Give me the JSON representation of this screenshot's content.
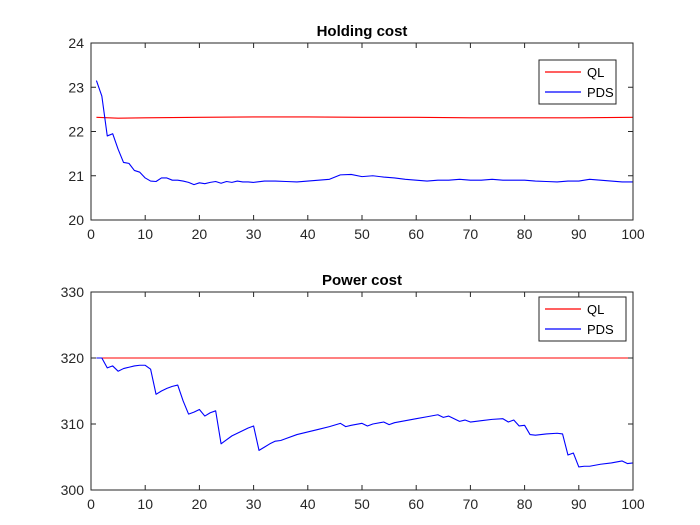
{
  "chart_data": [
    {
      "type": "line",
      "title": "Holding cost",
      "xlabel": "",
      "ylabel": "",
      "xlim": [
        0,
        100
      ],
      "ylim": [
        20,
        24
      ],
      "xticks": [
        0,
        10,
        20,
        30,
        40,
        50,
        60,
        70,
        80,
        90,
        100
      ],
      "yticks": [
        20,
        21,
        22,
        23,
        24
      ],
      "grid": false,
      "legend": "top-right",
      "series": [
        {
          "name": "QL",
          "color": "#ff0000",
          "x": [
            1,
            5,
            10,
            20,
            30,
            40,
            50,
            60,
            70,
            80,
            90,
            100
          ],
          "y": [
            22.32,
            22.3,
            22.31,
            22.32,
            22.33,
            22.33,
            22.32,
            22.32,
            22.31,
            22.31,
            22.31,
            22.32
          ]
        },
        {
          "name": "PDS",
          "color": "#0000ff",
          "x": [
            1,
            2,
            3,
            4,
            5,
            6,
            7,
            8,
            9,
            10,
            11,
            12,
            13,
            14,
            15,
            16,
            17,
            18,
            19,
            20,
            21,
            22,
            23,
            24,
            25,
            26,
            27,
            28,
            29,
            30,
            32,
            34,
            36,
            38,
            40,
            42,
            44,
            46,
            48,
            50,
            52,
            54,
            56,
            58,
            60,
            62,
            64,
            66,
            68,
            70,
            72,
            74,
            76,
            78,
            80,
            82,
            84,
            86,
            88,
            90,
            92,
            94,
            96,
            98,
            100
          ],
          "y": [
            23.15,
            22.8,
            21.9,
            21.95,
            21.6,
            21.3,
            21.28,
            21.12,
            21.08,
            20.95,
            20.88,
            20.87,
            20.95,
            20.95,
            20.9,
            20.9,
            20.88,
            20.85,
            20.8,
            20.84,
            20.82,
            20.85,
            20.87,
            20.83,
            20.87,
            20.85,
            20.88,
            20.86,
            20.86,
            20.85,
            20.88,
            20.88,
            20.87,
            20.86,
            20.88,
            20.9,
            20.92,
            21.02,
            21.03,
            20.98,
            21.0,
            20.97,
            20.95,
            20.92,
            20.9,
            20.88,
            20.9,
            20.9,
            20.92,
            20.9,
            20.9,
            20.92,
            20.9,
            20.9,
            20.9,
            20.88,
            20.87,
            20.86,
            20.88,
            20.88,
            20.92,
            20.9,
            20.88,
            20.86,
            20.86
          ]
        }
      ]
    },
    {
      "type": "line",
      "title": "Power cost",
      "xlabel": "",
      "ylabel": "",
      "xlim": [
        0,
        100
      ],
      "ylim": [
        300,
        330
      ],
      "xticks": [
        0,
        10,
        20,
        30,
        40,
        50,
        60,
        70,
        80,
        90,
        100
      ],
      "yticks": [
        300,
        310,
        320,
        330
      ],
      "grid": false,
      "legend": "top-right",
      "series": [
        {
          "name": "QL",
          "color": "#ff0000",
          "x": [
            1,
            100
          ],
          "y": [
            320,
            320
          ]
        },
        {
          "name": "PDS",
          "color": "#0000ff",
          "x": [
            1,
            2,
            3,
            4,
            5,
            6,
            7,
            8,
            9,
            10,
            11,
            12,
            13,
            14,
            15,
            16,
            17,
            18,
            19,
            20,
            21,
            22,
            23,
            24,
            25,
            26,
            27,
            28,
            29,
            30,
            31,
            32,
            33,
            34,
            35,
            36,
            38,
            40,
            42,
            44,
            46,
            47,
            48,
            50,
            51,
            52,
            54,
            55,
            56,
            58,
            60,
            62,
            64,
            65,
            66,
            67,
            68,
            69,
            70,
            72,
            74,
            76,
            77,
            78,
            79,
            80,
            81,
            82,
            84,
            86,
            87,
            88,
            89,
            90,
            91,
            92,
            94,
            96,
            98,
            99,
            100
          ],
          "y": [
            320,
            320,
            318.5,
            318.8,
            318,
            318.4,
            318.6,
            318.8,
            318.9,
            318.9,
            318.3,
            314.5,
            315,
            315.4,
            315.7,
            315.9,
            313.5,
            311.5,
            311.8,
            312.2,
            311.2,
            311.7,
            312,
            307,
            307.6,
            308.2,
            308.6,
            309,
            309.4,
            309.7,
            306,
            306.5,
            307,
            307.4,
            307.5,
            307.8,
            308.4,
            308.8,
            309.2,
            309.6,
            310.1,
            309.6,
            309.8,
            310.1,
            309.7,
            310,
            310.3,
            309.9,
            310.2,
            310.5,
            310.8,
            311.1,
            311.4,
            311,
            311.2,
            310.8,
            310.4,
            310.6,
            310.3,
            310.5,
            310.7,
            310.8,
            310.3,
            310.6,
            309.7,
            309.8,
            308.4,
            308.3,
            308.5,
            308.6,
            308.5,
            305.3,
            305.6,
            303.5,
            303.6,
            303.6,
            303.9,
            304.1,
            304.4,
            304,
            304.1
          ]
        }
      ]
    }
  ]
}
